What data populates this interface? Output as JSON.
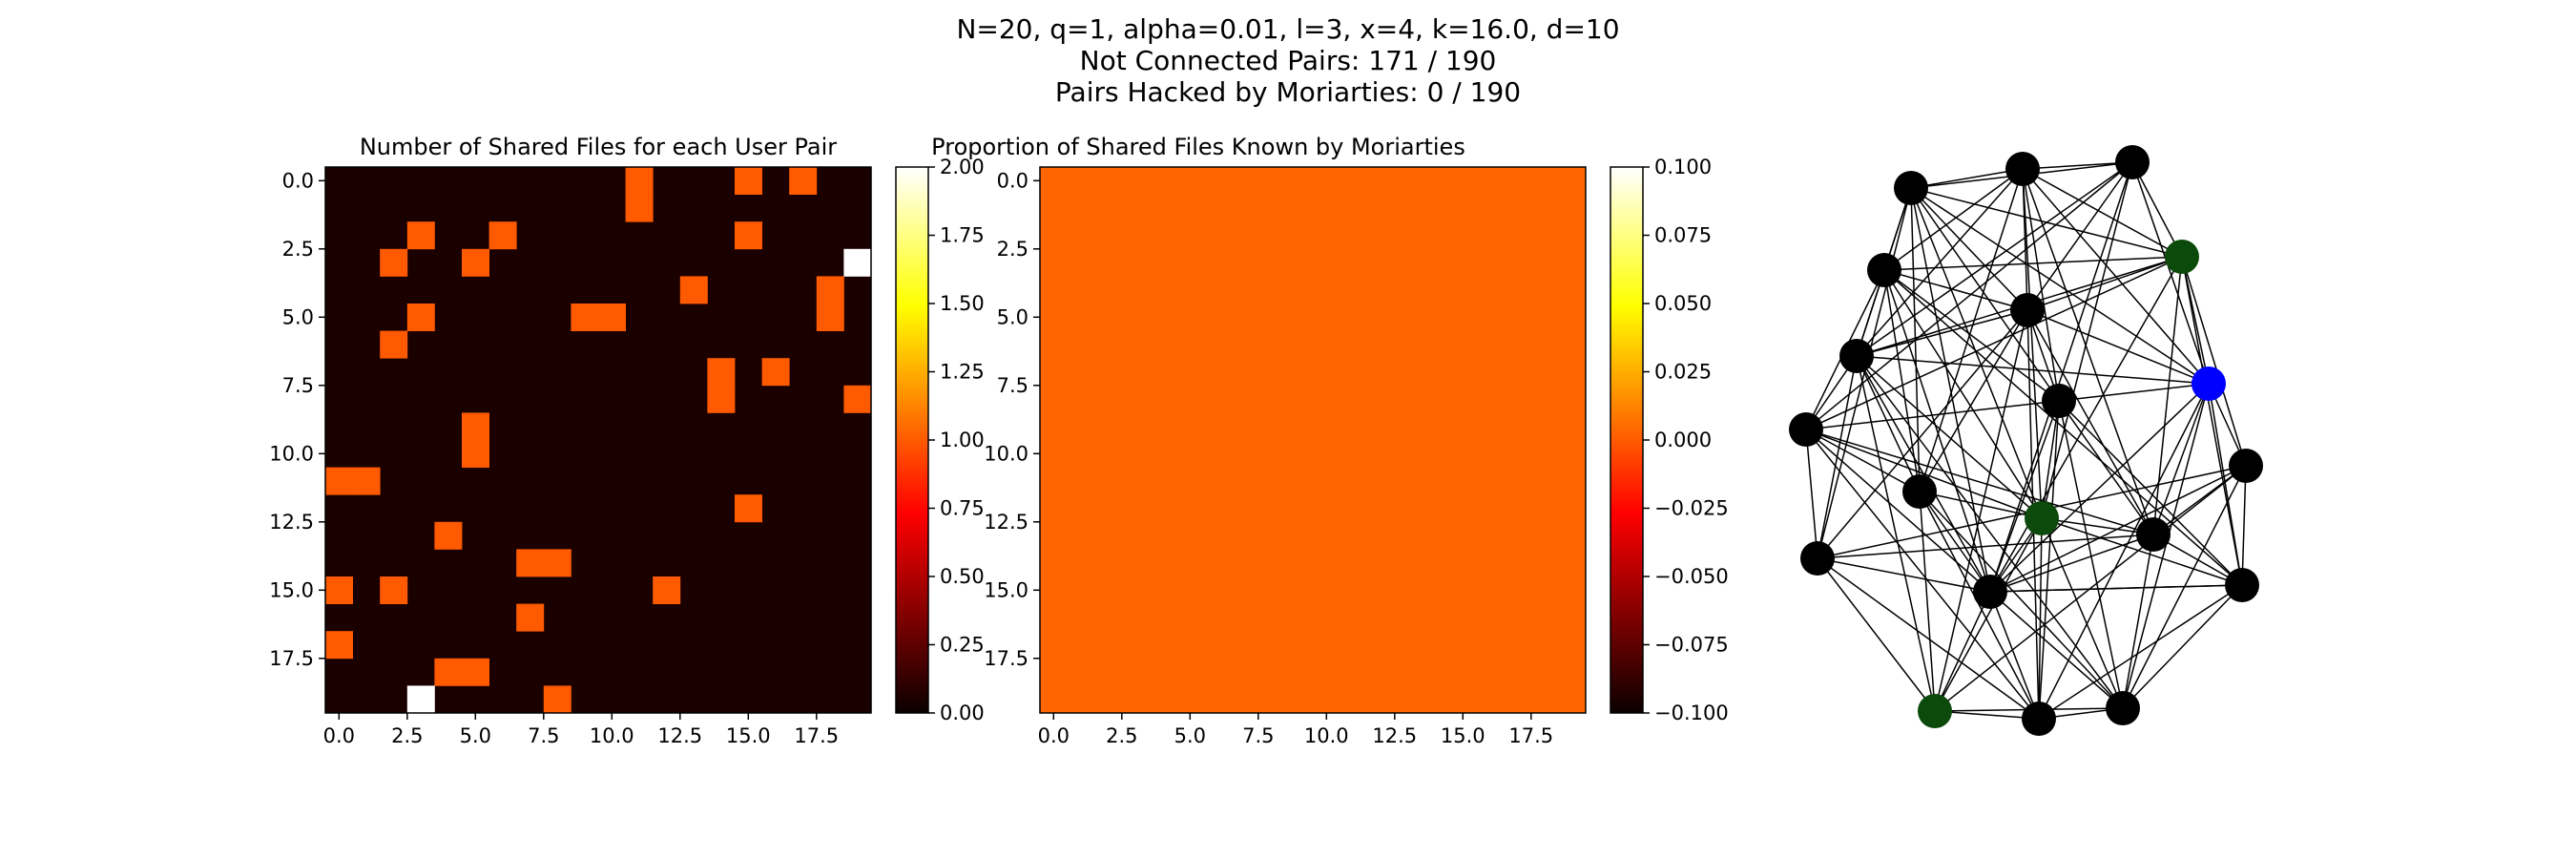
{
  "figure": {
    "title_lines": [
      "N=20, q=1, alpha=0.01, l=3, x=4, k=16.0, d=10",
      "Not Connected Pairs: 171 / 190",
      "Pairs Hacked by Moriarties: 0 / 190"
    ]
  },
  "chart_data": [
    {
      "type": "heatmap",
      "title": "Number of Shared Files for each User Pair",
      "n": 20,
      "colormap": "hot",
      "vmin": 0,
      "vmax": 2,
      "cells": [
        [
          0,
          15,
          1
        ],
        [
          0,
          17,
          1
        ],
        [
          0,
          11,
          1
        ],
        [
          1,
          11,
          1
        ],
        [
          2,
          3,
          1
        ],
        [
          2,
          6,
          1
        ],
        [
          2,
          15,
          1
        ],
        [
          3,
          2,
          1
        ],
        [
          3,
          5,
          1
        ],
        [
          3,
          19,
          2
        ],
        [
          4,
          13,
          1
        ],
        [
          4,
          18,
          1
        ],
        [
          5,
          3,
          1
        ],
        [
          5,
          9,
          1
        ],
        [
          5,
          10,
          1
        ],
        [
          5,
          18,
          1
        ],
        [
          6,
          2,
          1
        ],
        [
          7,
          14,
          1
        ],
        [
          7,
          16,
          1
        ],
        [
          8,
          14,
          1
        ],
        [
          8,
          19,
          1
        ],
        [
          9,
          5,
          1
        ],
        [
          10,
          5,
          1
        ],
        [
          11,
          0,
          1
        ],
        [
          11,
          1,
          1
        ],
        [
          12,
          15,
          1
        ],
        [
          13,
          4,
          1
        ],
        [
          14,
          7,
          1
        ],
        [
          14,
          8,
          1
        ],
        [
          15,
          0,
          1
        ],
        [
          15,
          2,
          1
        ],
        [
          15,
          12,
          1
        ],
        [
          16,
          7,
          1
        ],
        [
          17,
          0,
          1
        ],
        [
          18,
          4,
          1
        ],
        [
          18,
          5,
          1
        ],
        [
          19,
          3,
          2
        ],
        [
          19,
          8,
          1
        ]
      ],
      "x_ticks": [
        "0.0",
        "2.5",
        "5.0",
        "7.5",
        "10.0",
        "12.5",
        "15.0",
        "17.5"
      ],
      "y_ticks": [
        "0.0",
        "2.5",
        "5.0",
        "7.5",
        "10.0",
        "12.5",
        "15.0",
        "17.5"
      ],
      "colorbar_ticks": [
        "0.00",
        "0.25",
        "0.50",
        "0.75",
        "1.00",
        "1.25",
        "1.50",
        "1.75",
        "2.00"
      ]
    },
    {
      "type": "heatmap",
      "title": "Proportion of Shared Files Known by Moriarties",
      "n": 20,
      "colormap": "hot",
      "vmin": -0.1,
      "vmax": 0.1,
      "uniform_value": 0,
      "x_ticks": [
        "0.0",
        "2.5",
        "5.0",
        "7.5",
        "10.0",
        "12.5",
        "15.0",
        "17.5"
      ],
      "y_ticks": [
        "0.0",
        "2.5",
        "5.0",
        "7.5",
        "10.0",
        "12.5",
        "15.0",
        "17.5"
      ],
      "colorbar_ticks": [
        "0.100",
        "0.075",
        "0.050",
        "0.025",
        "0.000",
        "−0.025",
        "−0.050",
        "−0.075",
        "−0.100"
      ]
    },
    {
      "type": "network",
      "node_count": 20,
      "node_colors": {
        "default": "#000000",
        "green": "#0b4a0b",
        "blue": "#0000ff"
      },
      "node_types": [
        "black",
        "black",
        "black",
        "green",
        "black",
        "black",
        "black",
        "blue",
        "black",
        "black",
        "black",
        "green",
        "black",
        "black",
        "black",
        "black",
        "black",
        "green",
        "black",
        "black"
      ]
    }
  ]
}
